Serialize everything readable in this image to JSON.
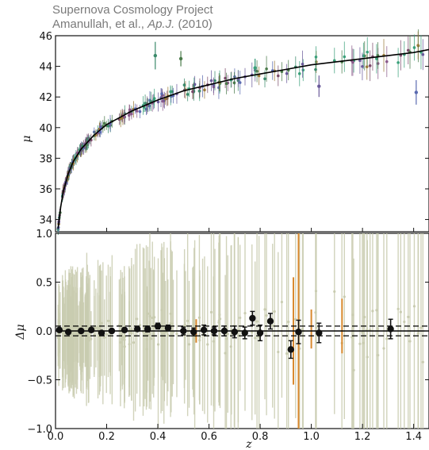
{
  "header": {
    "line1": "Supernova Cosmology Project",
    "line2_authors": "Amanullah, et al.,",
    "line2_journal": "Ap.J.",
    "line2_year": "(2010)"
  },
  "colors": {
    "upper_points": [
      "#3a8a6a",
      "#6a5a9a",
      "#8a5a8a",
      "#4a7a4a",
      "#5a6ab0",
      "#9a7a3a",
      "#3aa07a",
      "#7a4a6a"
    ],
    "residual_gray": "#c9ccb0",
    "orange": "#d9892e",
    "binned": "#111111",
    "model": "#000000"
  },
  "chart_data": [
    {
      "type": "scatter",
      "title": "Supernova Cosmology Project",
      "xlabel": "",
      "ylabel": "μ",
      "xlim": [
        0.0,
        1.46
      ],
      "ylim": [
        33.2,
        46
      ],
      "yticks": [
        34,
        36,
        38,
        40,
        42,
        44,
        46
      ],
      "grid": false,
      "model_curve": {
        "x": [
          0.01,
          0.02,
          0.03,
          0.05,
          0.07,
          0.1,
          0.15,
          0.2,
          0.3,
          0.4,
          0.5,
          0.6,
          0.7,
          0.8,
          0.9,
          1.0,
          1.1,
          1.2,
          1.3,
          1.4,
          1.46
        ],
        "y": [
          33.4,
          34.8,
          35.8,
          37.0,
          37.8,
          38.6,
          39.5,
          40.2,
          41.1,
          41.8,
          42.4,
          42.8,
          43.2,
          43.5,
          43.8,
          44.1,
          44.3,
          44.5,
          44.7,
          44.9,
          45.1
        ]
      },
      "highlighted_points": [
        {
          "x": 0.39,
          "y": 44.7,
          "err": 0.9
        },
        {
          "x": 0.49,
          "y": 44.5,
          "err": 0.5
        },
        {
          "x": 0.78,
          "y": 43.9,
          "err": 0.6
        },
        {
          "x": 1.03,
          "y": 42.7,
          "err": 0.7
        },
        {
          "x": 1.41,
          "y": 42.3,
          "err": 0.8
        }
      ]
    },
    {
      "type": "scatter",
      "xlabel": "z",
      "ylabel": "Δμ",
      "xlim": [
        0.0,
        1.46
      ],
      "ylim": [
        -1.0,
        1.0
      ],
      "xticks": [
        "0.0",
        "0.2",
        "0.4",
        "0.6",
        "0.8",
        "1.0",
        "1.2",
        "1.4"
      ],
      "yticks": [
        "−1.0",
        "−0.5",
        "0.0",
        "0.5",
        "1.0"
      ],
      "zero_line": 0.0,
      "dashed_band": [
        0.05,
        -0.05
      ],
      "binned": {
        "x": [
          0.015,
          0.05,
          0.1,
          0.14,
          0.18,
          0.22,
          0.27,
          0.32,
          0.36,
          0.4,
          0.44,
          0.5,
          0.54,
          0.58,
          0.62,
          0.66,
          0.7,
          0.74,
          0.77,
          0.8,
          0.84,
          0.92,
          0.95,
          1.03,
          1.31
        ],
        "y": [
          0.01,
          -0.01,
          0.0,
          0.01,
          -0.02,
          0.0,
          0.01,
          0.02,
          0.02,
          0.05,
          0.03,
          0.0,
          -0.01,
          0.01,
          0.0,
          0.0,
          -0.01,
          -0.02,
          0.13,
          -0.02,
          0.1,
          -0.19,
          -0.01,
          -0.02,
          0.02
        ],
        "err": [
          0.02,
          0.02,
          0.02,
          0.02,
          0.02,
          0.02,
          0.02,
          0.02,
          0.03,
          0.03,
          0.03,
          0.04,
          0.04,
          0.05,
          0.04,
          0.05,
          0.06,
          0.06,
          0.07,
          0.08,
          0.08,
          0.09,
          0.12,
          0.1,
          0.1
        ]
      },
      "orange_errorbars": [
        {
          "x": 0.55,
          "y": 0.0,
          "err": 0.12
        },
        {
          "x": 0.93,
          "y": 0.0,
          "err": 0.55
        },
        {
          "x": 0.95,
          "y": 0.0,
          "err": 1.0
        },
        {
          "x": 1.0,
          "y": 0.02,
          "err": 0.2
        },
        {
          "x": 1.12,
          "y": 0.05,
          "err": 0.28
        }
      ]
    }
  ]
}
